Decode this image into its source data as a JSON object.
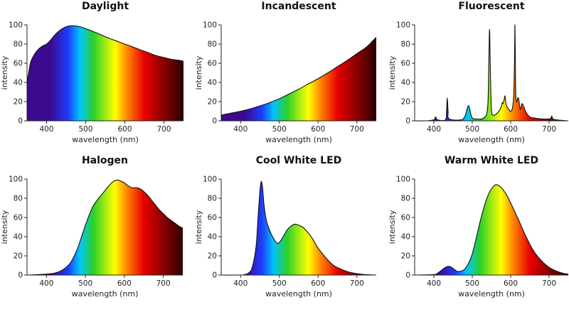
{
  "spectrum_colors": {
    "violet": "#3b0a8f",
    "blue": "#1e3cff",
    "cyan": "#00c4ff",
    "green": "#2ad02a",
    "yellow": "#ffff00",
    "orange": "#ff8a00",
    "red": "#e80000",
    "dark_red": "#2a0000"
  },
  "chart_data": [
    {
      "type": "area",
      "title": "Daylight",
      "xlabel": "wavelength (nm)",
      "ylabel": "intensity",
      "xlim": [
        350,
        750
      ],
      "ylim": [
        0,
        100
      ],
      "xticks": [
        400,
        500,
        600,
        700
      ],
      "yticks": [
        0,
        20,
        40,
        60,
        80,
        100
      ],
      "x": [
        350,
        355,
        360,
        370,
        380,
        390,
        400,
        410,
        420,
        430,
        440,
        450,
        460,
        470,
        480,
        490,
        500,
        520,
        540,
        560,
        580,
        600,
        620,
        640,
        660,
        680,
        700,
        720,
        740,
        750
      ],
      "values": [
        40,
        52,
        62,
        70,
        75,
        78,
        80,
        84,
        89,
        93,
        96,
        98,
        99,
        99,
        98.5,
        97.5,
        96,
        93,
        89.5,
        86,
        83,
        80,
        77,
        74,
        71,
        68,
        66,
        64,
        63,
        62
      ]
    },
    {
      "type": "area",
      "title": "Incandescent",
      "xlabel": "wavelength (nm)",
      "ylabel": "intensity",
      "xlim": [
        350,
        750
      ],
      "ylim": [
        0,
        100
      ],
      "xticks": [
        400,
        500,
        600,
        700
      ],
      "yticks": [
        0,
        20,
        40,
        60,
        80,
        100
      ],
      "x": [
        350,
        375,
        400,
        425,
        450,
        475,
        500,
        525,
        550,
        575,
        600,
        625,
        650,
        675,
        700,
        725,
        740,
        750
      ],
      "values": [
        6,
        8,
        10,
        12.5,
        15.5,
        19,
        23,
        28,
        33,
        38.5,
        44,
        50,
        56.5,
        63,
        70,
        77,
        83,
        87
      ]
    },
    {
      "type": "area",
      "title": "Fluorescent",
      "xlabel": "wavelength (nm)",
      "ylabel": "intensity",
      "xlim": [
        350,
        750
      ],
      "ylim": [
        0,
        100
      ],
      "xticks": [
        400,
        500,
        600,
        700
      ],
      "yticks": [
        0,
        20,
        40,
        60,
        80,
        100
      ],
      "x": [
        350,
        380,
        400,
        403,
        405,
        407,
        410,
        430,
        433,
        435,
        437,
        440,
        470,
        480,
        485,
        487,
        490,
        493,
        495,
        500,
        510,
        530,
        540,
        543,
        545,
        547,
        550,
        555,
        565,
        575,
        578,
        580,
        583,
        585,
        587,
        590,
        595,
        600,
        605,
        608,
        610,
        611,
        612,
        613,
        615,
        620,
        625,
        630,
        640,
        650,
        660,
        680,
        700,
        705,
        707,
        710,
        720,
        750
      ],
      "values": [
        0,
        0,
        1,
        3,
        4,
        2,
        1,
        1,
        10,
        24,
        10,
        2,
        1,
        4,
        10,
        13,
        16,
        13,
        9,
        3,
        2,
        3,
        14,
        60,
        95,
        55,
        12,
        6,
        8,
        14,
        19,
        18,
        22,
        26,
        20,
        15,
        12,
        10,
        14,
        28,
        65,
        100,
        70,
        32,
        20,
        24,
        12,
        18,
        9,
        4,
        3,
        2,
        2,
        3,
        5,
        2,
        1,
        0
      ]
    },
    {
      "type": "area",
      "title": "Halogen",
      "xlabel": "wavelength (nm)",
      "ylabel": "intensity",
      "xlim": [
        350,
        750
      ],
      "ylim": [
        0,
        100
      ],
      "xticks": [
        400,
        500,
        600,
        700
      ],
      "yticks": [
        0,
        20,
        40,
        60,
        80,
        100
      ],
      "x": [
        350,
        380,
        400,
        420,
        440,
        460,
        470,
        480,
        490,
        500,
        510,
        520,
        530,
        540,
        550,
        560,
        570,
        580,
        590,
        600,
        610,
        620,
        630,
        640,
        650,
        660,
        670,
        680,
        690,
        700,
        710,
        720,
        730,
        740,
        750
      ],
      "values": [
        0,
        0.5,
        1,
        2,
        5,
        12,
        19,
        28,
        40,
        52,
        63,
        72,
        78,
        83,
        88,
        93,
        97,
        99,
        98,
        96,
        93,
        91,
        91,
        90,
        87,
        83,
        78,
        73,
        68,
        64,
        60,
        57,
        54,
        51,
        49
      ]
    },
    {
      "type": "area",
      "title": "Cool White LED",
      "xlabel": "wavelength (nm)",
      "ylabel": "intensity",
      "xlim": [
        350,
        750
      ],
      "ylim": [
        0,
        100
      ],
      "xticks": [
        400,
        500,
        600,
        700
      ],
      "yticks": [
        0,
        20,
        40,
        60,
        80,
        100
      ],
      "x": [
        350,
        400,
        410,
        420,
        430,
        440,
        445,
        450,
        453,
        455,
        457,
        460,
        465,
        470,
        480,
        490,
        495,
        500,
        510,
        520,
        530,
        540,
        550,
        560,
        570,
        580,
        590,
        600,
        620,
        640,
        660,
        680,
        700,
        720,
        750
      ],
      "values": [
        0,
        0,
        0.5,
        2,
        8,
        30,
        60,
        88,
        97,
        96,
        90,
        75,
        60,
        52,
        42,
        35,
        33,
        34,
        40,
        47,
        51,
        53,
        52,
        50,
        46,
        41,
        35,
        28,
        18,
        10,
        6,
        3,
        1.5,
        0.5,
        0
      ]
    },
    {
      "type": "area",
      "title": "Warm White LED",
      "xlabel": "wavelength (nm)",
      "ylabel": "intensity",
      "xlim": [
        350,
        750
      ],
      "ylim": [
        0,
        100
      ],
      "xticks": [
        400,
        500,
        600,
        700
      ],
      "yticks": [
        0,
        20,
        40,
        60,
        80,
        100
      ],
      "x": [
        350,
        400,
        410,
        420,
        430,
        440,
        450,
        460,
        470,
        480,
        490,
        500,
        510,
        520,
        530,
        540,
        550,
        560,
        565,
        570,
        580,
        590,
        600,
        620,
        640,
        660,
        680,
        700,
        720,
        740,
        750
      ],
      "values": [
        0,
        0.5,
        2,
        5,
        8,
        9,
        7,
        4,
        4,
        6,
        12,
        22,
        38,
        55,
        70,
        82,
        90,
        94,
        94,
        93,
        89,
        83,
        75,
        58,
        40,
        25,
        15,
        8,
        4,
        1.5,
        1
      ]
    }
  ]
}
